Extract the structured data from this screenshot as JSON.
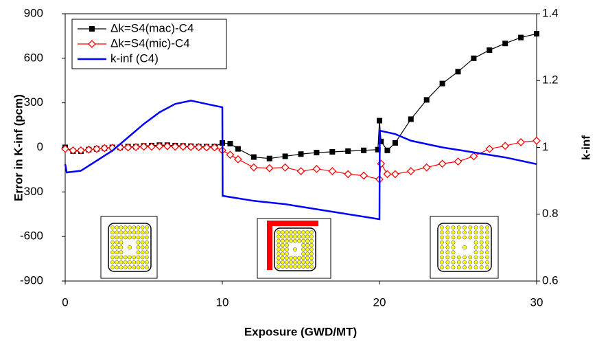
{
  "chart_data": {
    "type": "line",
    "x_label": "Exposure (GWD/MT)",
    "y_label": "Error in K-inf (pcm)",
    "y2_label": "k-inf",
    "xlim": [
      0,
      30
    ],
    "xticks": [
      0,
      10,
      20,
      30
    ],
    "ylim": [
      -900,
      900
    ],
    "yticks": [
      -900,
      -600,
      -300,
      0,
      300,
      600,
      900
    ],
    "y2lim": [
      0.6,
      1.4
    ],
    "y2ticks": [
      0.6,
      0.8,
      1.0,
      1.2,
      1.4
    ],
    "legend": "upper left",
    "series": [
      {
        "name": "Δk=S4(mac)-C4",
        "color": "#000000",
        "marker": "square",
        "x": [
          0,
          0.5,
          1,
          1.5,
          2,
          2.5,
          3,
          3.5,
          4,
          4.5,
          5,
          5.5,
          6,
          6.5,
          7,
          7.5,
          8,
          8.5,
          9,
          9.5,
          10,
          10.5,
          11,
          12,
          13,
          14,
          15,
          16,
          17,
          18,
          19,
          19.9,
          20,
          20.1,
          20.5,
          21,
          22,
          23,
          24,
          25,
          26,
          27,
          28,
          29,
          30
        ],
        "values": [
          0,
          -25,
          -25,
          -15,
          -10,
          -5,
          0,
          0,
          5,
          5,
          10,
          12,
          15,
          15,
          12,
          10,
          8,
          5,
          5,
          5,
          30,
          25,
          -10,
          -65,
          -75,
          -60,
          -45,
          -35,
          -30,
          -25,
          -20,
          -15,
          180,
          40,
          -20,
          30,
          190,
          320,
          430,
          510,
          600,
          655,
          700,
          740,
          765
        ]
      },
      {
        "name": "Δk=S4(mic)-C4",
        "color": "#ff0000",
        "marker": "diamond",
        "x": [
          0,
          0.5,
          1,
          1.5,
          2,
          2.5,
          3,
          3.5,
          4,
          4.5,
          5,
          5.5,
          6,
          6.5,
          7,
          7.5,
          8,
          8.5,
          9,
          9.5,
          10,
          10.5,
          11,
          12,
          13,
          14,
          15,
          16,
          17,
          18,
          19,
          20,
          20.1,
          20.5,
          21,
          22,
          23,
          24,
          25,
          26,
          27,
          28,
          29,
          30
        ],
        "values": [
          -10,
          -20,
          -20,
          -15,
          -10,
          -5,
          -3,
          0,
          0,
          2,
          5,
          5,
          8,
          8,
          5,
          5,
          3,
          2,
          0,
          0,
          -20,
          -50,
          -80,
          -135,
          -140,
          -135,
          -160,
          -145,
          -160,
          -180,
          -190,
          -215,
          -110,
          -180,
          -180,
          -160,
          -135,
          -110,
          -95,
          -60,
          -10,
          10,
          35,
          45
        ]
      },
      {
        "name": "k-inf (C4)",
        "color": "#0000ff",
        "axis": "y2",
        "x": [
          0,
          0.1,
          1,
          2,
          3,
          4,
          5,
          6,
          7,
          8,
          9,
          10,
          10.02,
          12,
          14,
          16,
          18,
          20,
          20.02,
          21,
          22,
          24,
          26,
          28,
          30
        ],
        "values": [
          0.95,
          0.925,
          0.93,
          0.96,
          0.99,
          1.03,
          1.07,
          1.105,
          1.13,
          1.14,
          1.13,
          1.12,
          0.855,
          0.84,
          0.83,
          0.815,
          0.8,
          0.785,
          1.05,
          1.04,
          1.02,
          1.0,
          0.985,
          0.97,
          0.95
        ]
      }
    ]
  }
}
